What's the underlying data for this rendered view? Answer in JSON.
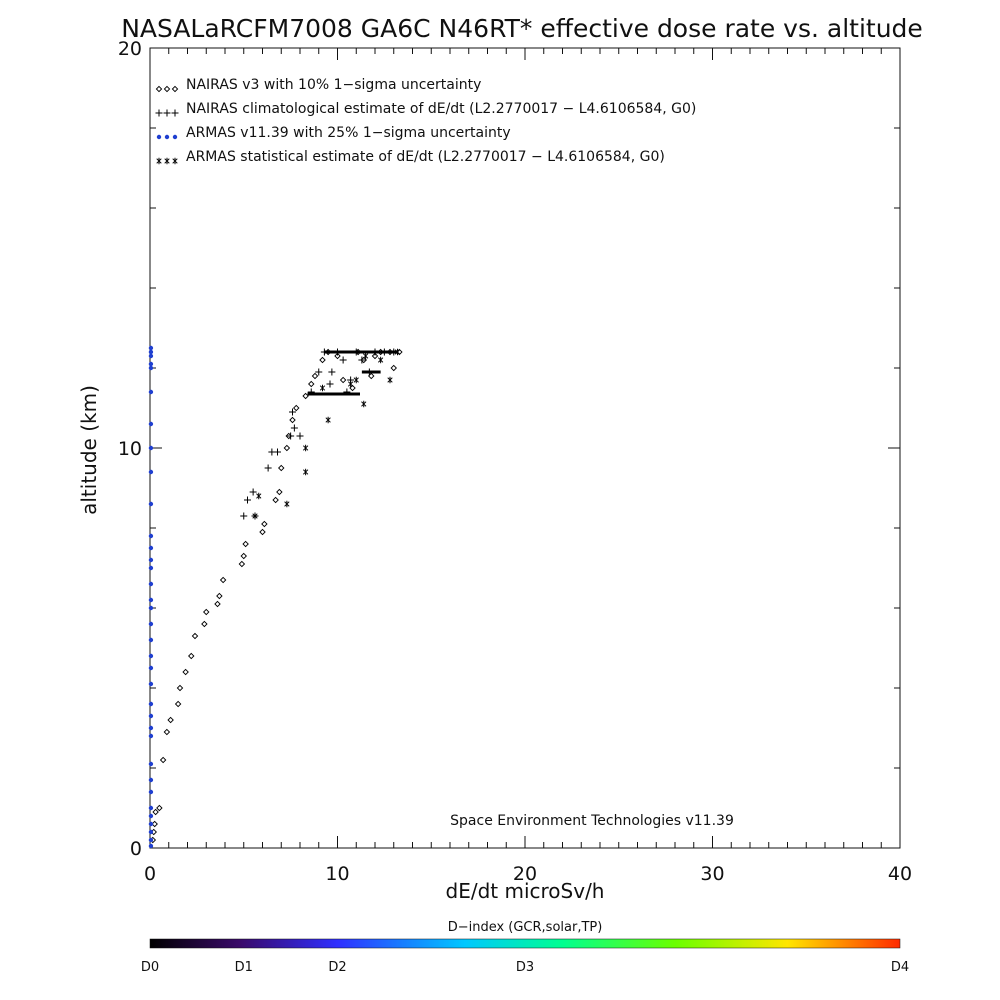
{
  "chart_data": {
    "type": "scatter",
    "title": "NASALaRCFM7008  GA6C N46RT* effective dose rate vs. altitude",
    "xlabel": "dE/dt microSv/h",
    "ylabel": "altitude (km)",
    "xlim": [
      0,
      40
    ],
    "ylim": [
      0,
      20
    ],
    "x_ticks": [
      "0",
      "10",
      "20",
      "30",
      "40"
    ],
    "y_ticks": [
      "0",
      "10",
      "20"
    ],
    "legend_position": "top-left",
    "annotation": "Space Environment Technologies v11.39",
    "colorbar": {
      "title": "D−index (GCR,solar,TP)",
      "labels": [
        "D0",
        "D1",
        "D2",
        "D3",
        "D4"
      ],
      "label_values": [
        0,
        0.5,
        1,
        2,
        4
      ],
      "range": [
        0,
        4
      ]
    },
    "series": [
      {
        "name": "NAIRAS v3 with 10% 1−sigma uncertainty",
        "marker": "diamond",
        "color": "#000000",
        "x": [
          0.15,
          0.2,
          0.25,
          0.3,
          0.5,
          0.7,
          0.9,
          1.1,
          1.5,
          1.6,
          1.9,
          2.2,
          2.4,
          2.9,
          3.0,
          3.6,
          3.7,
          3.9,
          4.9,
          5.0,
          5.1,
          6.0,
          6.1,
          6.7,
          6.9,
          7.0,
          7.3,
          7.4,
          7.6,
          7.8,
          8.3,
          8.6,
          8.8,
          9.2,
          9.5,
          10.0,
          10.3,
          10.8,
          11.1,
          11.4,
          11.8,
          12.0,
          12.3,
          12.8,
          13.0,
          13.3
        ],
        "y": [
          0.2,
          0.4,
          0.6,
          0.9,
          1.0,
          2.2,
          2.9,
          3.2,
          3.6,
          4.0,
          4.4,
          4.8,
          5.3,
          5.6,
          5.9,
          6.1,
          6.3,
          6.7,
          7.1,
          7.3,
          7.6,
          7.9,
          8.1,
          8.7,
          8.9,
          9.5,
          10.0,
          10.3,
          10.7,
          11.0,
          11.3,
          11.6,
          11.8,
          12.2,
          12.4,
          12.3,
          11.7,
          11.5,
          12.4,
          12.2,
          11.8,
          12.3,
          12.4,
          12.4,
          12.0,
          12.4
        ]
      },
      {
        "name": "NAIRAS climatological estimate of dE/dt (L2.2770017 − L4.6106584, G0)",
        "marker": "plus",
        "color": "#000000",
        "x": [
          5.0,
          5.2,
          5.5,
          5.6,
          6.3,
          6.5,
          6.8,
          7.5,
          7.7,
          7.6,
          8.0,
          8.6,
          9.0,
          9.3,
          9.6,
          9.7,
          10.0,
          10.3,
          10.5,
          10.7,
          11.0,
          11.3,
          11.7,
          12.0,
          12.5,
          13.0
        ],
        "y": [
          8.3,
          8.7,
          8.9,
          8.3,
          9.5,
          9.9,
          9.9,
          10.3,
          10.5,
          10.9,
          10.3,
          11.4,
          11.9,
          12.4,
          11.6,
          11.9,
          12.4,
          12.2,
          11.4,
          11.7,
          12.4,
          12.2,
          11.9,
          12.4,
          12.4,
          12.4
        ],
        "line_x": [
          8.4,
          11.2
        ],
        "line_y": 11.35
      },
      {
        "name": "ARMAS v11.39 with 25% 1−sigma uncertainty",
        "marker": "dot",
        "color": "#1f3fd0",
        "x": [
          0.05,
          0.05,
          0.05,
          0.05,
          0.05,
          0.05,
          0.05,
          0.05,
          0.05,
          0.05,
          0.05,
          0.05,
          0.05,
          0.05,
          0.05,
          0.05,
          0.05,
          0.05,
          0.05,
          0.05,
          0.05,
          0.05,
          0.05,
          0.05,
          0.05,
          0.05,
          0.05,
          0.05,
          0.05,
          0.05,
          0.05,
          0.05,
          0.05,
          0.05,
          0.05
        ],
        "y": [
          0.05,
          0.2,
          0.4,
          0.6,
          0.8,
          1.0,
          1.4,
          1.7,
          2.1,
          2.8,
          3.0,
          3.3,
          3.6,
          4.1,
          4.5,
          4.8,
          5.2,
          5.6,
          6.0,
          6.2,
          6.6,
          7.0,
          7.2,
          7.5,
          7.8,
          8.6,
          9.4,
          10.0,
          10.6,
          11.4,
          12.0,
          12.1,
          12.3,
          12.4,
          12.5
        ]
      },
      {
        "name": "ARMAS statistical estimate of dE/dt (L2.2770017 − L4.6106584, G0)",
        "marker": "asterisk",
        "color": "#000000",
        "x": [
          5.6,
          5.8,
          7.3,
          8.3,
          8.3,
          9.2,
          9.5,
          10.7,
          11.0,
          11.4,
          11.5,
          12.3,
          12.8,
          13.2
        ],
        "y": [
          8.3,
          8.8,
          8.6,
          9.4,
          10.0,
          11.5,
          10.7,
          11.6,
          11.7,
          11.1,
          12.3,
          12.2,
          11.7,
          12.4
        ],
        "line_x": [
          11.3,
          12.3
        ],
        "line_y": 11.9,
        "top_line_x": [
          9.3,
          13.2
        ],
        "top_line_y": 12.4
      }
    ]
  }
}
